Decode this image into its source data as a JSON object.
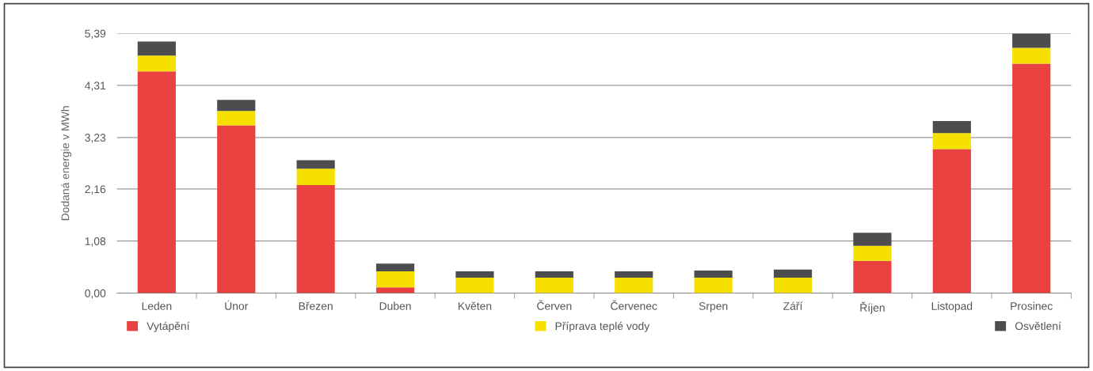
{
  "chart_data": {
    "type": "bar",
    "stacked": true,
    "ylabel": "Dodaná energie v MWh",
    "categories": [
      "Leden",
      "Únor",
      "Březen",
      "Duben",
      "Květen",
      "Červen",
      "Červenec",
      "Srpen",
      "Září",
      "Říjen",
      "Listopad",
      "Prosinec"
    ],
    "series": [
      {
        "name": "Vytápění",
        "color": "#e8413f",
        "values": [
          4.6,
          3.48,
          2.24,
          0.12,
          0,
          0,
          0,
          0,
          0,
          0.67,
          2.99,
          4.76
        ]
      },
      {
        "name": "Příprava teplé vody",
        "color": "#f5e000",
        "values": [
          0.33,
          0.3,
          0.34,
          0.33,
          0.32,
          0.32,
          0.32,
          0.32,
          0.32,
          0.31,
          0.33,
          0.33
        ]
      },
      {
        "name": "Osvětlení",
        "color": "#4d4d4f",
        "values": [
          0.29,
          0.23,
          0.18,
          0.16,
          0.13,
          0.13,
          0.13,
          0.15,
          0.17,
          0.27,
          0.25,
          0.3
        ]
      }
    ],
    "ylim": [
      0,
      5.39
    ],
    "yticks": [
      {
        "value": 0,
        "label": "0,00"
      },
      {
        "value": 1.08,
        "label": "1,08"
      },
      {
        "value": 2.16,
        "label": "2,16"
      },
      {
        "value": 3.23,
        "label": "3,23"
      },
      {
        "value": 4.31,
        "label": "4,31"
      },
      {
        "value": 5.39,
        "label": "5,39"
      }
    ],
    "grid": "y",
    "legend": "bottom"
  }
}
